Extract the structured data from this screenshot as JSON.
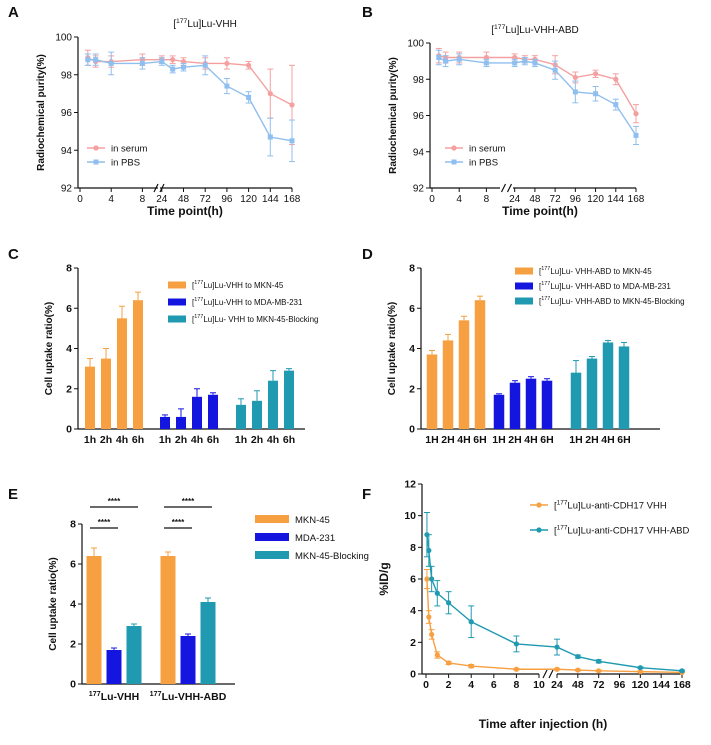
{
  "colors": {
    "serum": "#f4a0a0",
    "pbs": "#8fbfee",
    "orange": "#f6a042",
    "blue": "#1515e0",
    "teal": "#1f9ab0",
    "axis": "#111111"
  },
  "chart_data": [
    {
      "panel": "A",
      "type": "line",
      "title": "[177Lu]Lu-VHH",
      "xlabel": "Time point(h)",
      "ylabel": "Radiochemical purity(%)",
      "x_ticks": [
        0,
        4,
        8,
        24,
        48,
        72,
        96,
        120,
        144,
        168
      ],
      "x_tick_labels": [
        "0",
        "4",
        "8",
        "24",
        "48",
        "72",
        "96",
        "120",
        "144",
        "168"
      ],
      "yticks": [
        92,
        94,
        96,
        98,
        100
      ],
      "ylim": [
        92,
        100
      ],
      "x_break": [
        10,
        22
      ],
      "legend_position": "bottom-left",
      "series": [
        {
          "name": "in serum",
          "x": [
            1,
            2,
            4,
            8,
            24,
            36,
            48,
            72,
            96,
            120,
            144,
            168
          ],
          "y": [
            98.9,
            98.7,
            98.7,
            98.8,
            98.8,
            98.8,
            98.7,
            98.6,
            98.6,
            98.5,
            97.0,
            96.4
          ],
          "err": [
            0.4,
            0.3,
            0.3,
            0.3,
            0.2,
            0.2,
            0.2,
            0.3,
            0.3,
            0.2,
            1.3,
            2.1
          ]
        },
        {
          "name": "in PBS",
          "x": [
            1,
            2,
            4,
            8,
            24,
            36,
            48,
            72,
            96,
            120,
            144,
            168
          ],
          "y": [
            98.8,
            98.8,
            98.6,
            98.6,
            98.7,
            98.3,
            98.4,
            98.5,
            97.4,
            96.8,
            94.7,
            94.5
          ],
          "err": [
            0.3,
            0.3,
            0.6,
            0.3,
            0.2,
            0.2,
            0.2,
            0.5,
            0.4,
            0.3,
            1.0,
            1.1
          ]
        }
      ]
    },
    {
      "panel": "B",
      "type": "line",
      "title": "[177Lu]Lu-VHH-ABD",
      "xlabel": "Time point(h)",
      "ylabel": "Radiochemical purity(%)",
      "x_ticks": [
        0,
        4,
        8,
        24,
        48,
        72,
        96,
        120,
        144,
        168
      ],
      "x_tick_labels": [
        "0",
        "4",
        "8",
        "24",
        "48",
        "72",
        "96",
        "120",
        "144",
        "168"
      ],
      "yticks": [
        92,
        94,
        96,
        98,
        100
      ],
      "ylim": [
        92,
        100
      ],
      "x_break": [
        10,
        22
      ],
      "legend_position": "bottom-left",
      "series": [
        {
          "name": "in serum",
          "x": [
            1,
            2,
            4,
            8,
            24,
            36,
            48,
            72,
            96,
            120,
            144,
            168
          ],
          "y": [
            99.3,
            99.2,
            99.2,
            99.2,
            99.2,
            99.1,
            99.1,
            98.8,
            98.1,
            98.3,
            98.0,
            96.1
          ],
          "err": [
            0.4,
            0.3,
            0.3,
            0.3,
            0.2,
            0.2,
            0.2,
            0.5,
            0.3,
            0.2,
            0.3,
            0.5
          ]
        },
        {
          "name": "in PBS",
          "x": [
            1,
            2,
            4,
            8,
            24,
            36,
            48,
            72,
            96,
            120,
            144,
            168
          ],
          "y": [
            99.2,
            99.0,
            99.1,
            98.9,
            98.9,
            99.0,
            98.9,
            98.5,
            97.3,
            97.2,
            96.6,
            94.9
          ],
          "err": [
            0.4,
            0.3,
            0.3,
            0.2,
            0.2,
            0.2,
            0.2,
            0.5,
            0.6,
            0.4,
            0.3,
            0.5
          ]
        }
      ]
    },
    {
      "panel": "C",
      "type": "bar",
      "ylabel": "Cell uptake ratio(%)",
      "yticks": [
        0,
        2,
        4,
        6,
        8
      ],
      "ylim": [
        0,
        8
      ],
      "legend_position": "top-right",
      "categories": [
        "1h",
        "2h",
        "4h",
        "6h"
      ],
      "series": [
        {
          "name": "[177Lu]Lu-VHH to MKN-45",
          "color_key": "orange",
          "values": [
            3.1,
            3.5,
            5.5,
            6.4
          ],
          "err": [
            0.4,
            0.5,
            0.6,
            0.4
          ]
        },
        {
          "name": "[177Lu]Lu-VHH to MDA-MB-231",
          "color_key": "blue",
          "values": [
            0.6,
            0.6,
            1.6,
            1.7
          ],
          "err": [
            0.1,
            0.4,
            0.4,
            0.1
          ]
        },
        {
          "name": "[177Lu]Lu- VHH to MKN-45-Blocking",
          "color_key": "teal",
          "values": [
            1.2,
            1.4,
            2.4,
            2.9
          ],
          "err": [
            0.3,
            0.5,
            0.5,
            0.1
          ]
        }
      ]
    },
    {
      "panel": "D",
      "type": "bar",
      "ylabel": "Cell uptake ratio(%)",
      "yticks": [
        0,
        2,
        4,
        6,
        8
      ],
      "ylim": [
        0,
        8
      ],
      "legend_position": "top-right",
      "categories": [
        "1H",
        "2H",
        "4H",
        "6H"
      ],
      "series": [
        {
          "name": "[177Lu]Lu- VHH-ABD to MKN-45",
          "color_key": "orange",
          "values": [
            3.7,
            4.4,
            5.4,
            6.4
          ],
          "err": [
            0.2,
            0.3,
            0.2,
            0.2
          ]
        },
        {
          "name": "[177Lu]Lu- VHH-ABD to MDA-MB-231",
          "color_key": "blue",
          "values": [
            1.7,
            2.3,
            2.5,
            2.4
          ],
          "err": [
            0.05,
            0.1,
            0.1,
            0.1
          ]
        },
        {
          "name": "[177Lu]Lu- VHH-ABD to MKN-45-Blocking",
          "color_key": "teal",
          "values": [
            2.8,
            3.5,
            4.3,
            4.1
          ],
          "err": [
            0.6,
            0.1,
            0.1,
            0.2
          ]
        }
      ]
    },
    {
      "panel": "E",
      "type": "bar",
      "ylabel": "Cell uptake ratio(%)",
      "yticks": [
        0,
        2,
        4,
        6,
        8
      ],
      "ylim": [
        0,
        8
      ],
      "legend_position": "right",
      "categories": [
        "177Lu-VHH",
        "177Lu-VHH-ABD"
      ],
      "significance": "****",
      "series": [
        {
          "name": "MKN-45",
          "color_key": "orange",
          "values": [
            6.4,
            6.4
          ],
          "err": [
            0.4,
            0.2
          ]
        },
        {
          "name": "MDA-231",
          "color_key": "blue",
          "values": [
            1.7,
            2.4
          ],
          "err": [
            0.1,
            0.1
          ]
        },
        {
          "name": "MKN-45-Blocking",
          "color_key": "teal",
          "values": [
            2.9,
            4.1
          ],
          "err": [
            0.1,
            0.2
          ]
        }
      ]
    },
    {
      "panel": "F",
      "type": "line",
      "xlabel": "Time after injection (h)",
      "ylabel": "%ID/g",
      "yticks": [
        0,
        2,
        4,
        6,
        8,
        10,
        12
      ],
      "ylim": [
        0,
        12
      ],
      "x_ticks": [
        0,
        2,
        4,
        6,
        8,
        10,
        24,
        48,
        72,
        96,
        120,
        144,
        168
      ],
      "x_tick_labels": [
        "0",
        "2",
        "4",
        "6",
        "8",
        "10",
        "24",
        "48",
        "72",
        "96",
        "120",
        "144",
        "168"
      ],
      "x_break": [
        10,
        24
      ],
      "legend_position": "top-right",
      "series": [
        {
          "name": "[177Lu]Lu-anti-CDH17 VHH",
          "color_key": "orange",
          "x": [
            0.083,
            0.25,
            0.5,
            1,
            2,
            4,
            8,
            24,
            48,
            72,
            120,
            168
          ],
          "y": [
            6.0,
            3.6,
            2.5,
            1.2,
            0.7,
            0.5,
            0.3,
            0.3,
            0.25,
            0.2,
            0.15,
            0.1
          ],
          "err": [
            0.6,
            0.4,
            0.3,
            0.2,
            0.1,
            0.1,
            0.05,
            0.05,
            0.05,
            0.05,
            0.03,
            0.03
          ]
        },
        {
          "name": "[177Lu]Lu-anti-CDH17 VHH-ABD",
          "color_key": "teal",
          "x": [
            0.083,
            0.25,
            0.5,
            1,
            2,
            4,
            8,
            24,
            48,
            72,
            120,
            168
          ],
          "y": [
            8.8,
            7.8,
            6.0,
            5.1,
            4.5,
            3.3,
            1.9,
            1.7,
            1.1,
            0.8,
            0.4,
            0.2
          ],
          "err": [
            1.4,
            1.0,
            0.8,
            0.8,
            0.7,
            1.0,
            0.5,
            0.5,
            0.1,
            0.1,
            0.05,
            0.05
          ]
        }
      ]
    }
  ]
}
